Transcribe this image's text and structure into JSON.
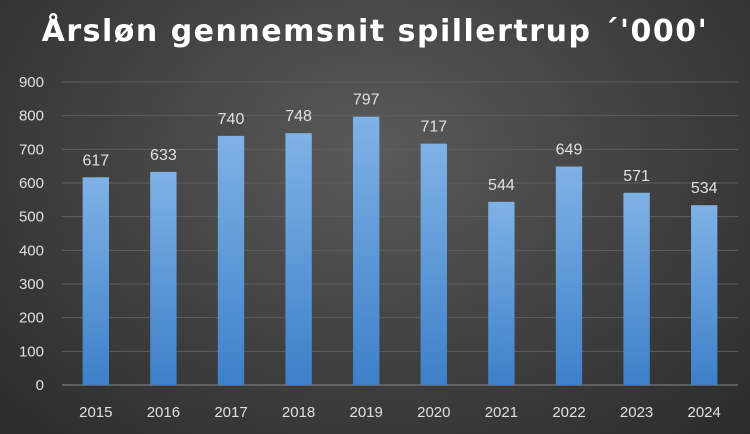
{
  "chart_data": {
    "type": "bar",
    "title": "Årsløn gennemsnit spillertrup ´'000'",
    "categories": [
      "2015",
      "2016",
      "2017",
      "2018",
      "2019",
      "2020",
      "2021",
      "2022",
      "2023",
      "2024"
    ],
    "values": [
      617,
      633,
      740,
      748,
      797,
      717,
      544,
      649,
      571,
      534
    ],
    "ylim": [
      0,
      900
    ],
    "yticks": [
      0,
      100,
      200,
      300,
      400,
      500,
      600,
      700,
      800,
      900
    ],
    "grid": true,
    "legend": "none",
    "colors": {
      "bar_top": "#7fb2e6",
      "bar_bottom": "#3d80c9"
    }
  }
}
